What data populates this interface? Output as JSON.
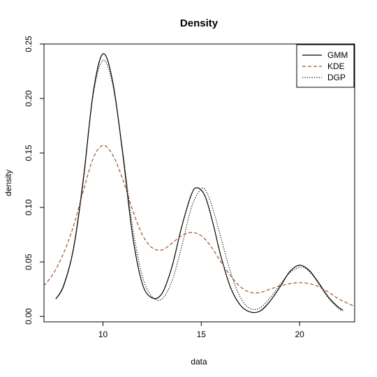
{
  "chart_data": {
    "type": "line",
    "title": "Density",
    "xlabel": "data",
    "ylabel": "density",
    "xlim": [
      7.0,
      22.8
    ],
    "ylim": [
      -0.005,
      0.25
    ],
    "x_ticks": [
      10,
      15,
      20
    ],
    "y_ticks": [
      0.0,
      0.05,
      0.1,
      0.15,
      0.2,
      0.25
    ],
    "x_tick_labels": [
      "10",
      "15",
      "20"
    ],
    "y_tick_labels": [
      "0.00",
      "0.05",
      "0.10",
      "0.15",
      "0.20",
      "0.25"
    ],
    "grid": false,
    "legend_position": "top-right",
    "series": [
      {
        "name": "GMM",
        "style": "solid",
        "color": "#000000",
        "points": [
          [
            7.6,
            0.016
          ],
          [
            8.0,
            0.028
          ],
          [
            8.5,
            0.062
          ],
          [
            9.0,
            0.125
          ],
          [
            9.5,
            0.205
          ],
          [
            10.0,
            0.241
          ],
          [
            10.5,
            0.215
          ],
          [
            11.0,
            0.15
          ],
          [
            11.5,
            0.075
          ],
          [
            12.0,
            0.03
          ],
          [
            12.5,
            0.017
          ],
          [
            13.0,
            0.021
          ],
          [
            13.5,
            0.045
          ],
          [
            14.0,
            0.082
          ],
          [
            14.5,
            0.112
          ],
          [
            14.8,
            0.118
          ],
          [
            15.2,
            0.11
          ],
          [
            15.6,
            0.085
          ],
          [
            16.0,
            0.055
          ],
          [
            16.5,
            0.026
          ],
          [
            17.0,
            0.01
          ],
          [
            17.5,
            0.004
          ],
          [
            18.0,
            0.005
          ],
          [
            18.5,
            0.014
          ],
          [
            19.0,
            0.027
          ],
          [
            19.5,
            0.041
          ],
          [
            20.0,
            0.047
          ],
          [
            20.5,
            0.042
          ],
          [
            21.0,
            0.03
          ],
          [
            21.5,
            0.017
          ],
          [
            22.0,
            0.008
          ],
          [
            22.2,
            0.006
          ]
        ]
      },
      {
        "name": "KDE",
        "style": "dashed",
        "color": "#a0522d",
        "points": [
          [
            7.0,
            0.028
          ],
          [
            7.5,
            0.04
          ],
          [
            8.0,
            0.058
          ],
          [
            8.5,
            0.083
          ],
          [
            9.0,
            0.115
          ],
          [
            9.5,
            0.145
          ],
          [
            10.0,
            0.157
          ],
          [
            10.5,
            0.148
          ],
          [
            11.0,
            0.126
          ],
          [
            11.5,
            0.098
          ],
          [
            12.0,
            0.075
          ],
          [
            12.5,
            0.063
          ],
          [
            13.0,
            0.061
          ],
          [
            13.5,
            0.067
          ],
          [
            14.0,
            0.074
          ],
          [
            14.5,
            0.077
          ],
          [
            15.0,
            0.074
          ],
          [
            15.5,
            0.064
          ],
          [
            16.0,
            0.05
          ],
          [
            16.5,
            0.037
          ],
          [
            17.0,
            0.027
          ],
          [
            17.5,
            0.022
          ],
          [
            18.0,
            0.022
          ],
          [
            18.5,
            0.025
          ],
          [
            19.0,
            0.028
          ],
          [
            19.5,
            0.03
          ],
          [
            20.0,
            0.031
          ],
          [
            20.5,
            0.03
          ],
          [
            21.0,
            0.027
          ],
          [
            21.5,
            0.022
          ],
          [
            22.0,
            0.016
          ],
          [
            22.8,
            0.009
          ]
        ]
      },
      {
        "name": "DGP",
        "style": "dotted",
        "color": "#000000",
        "points": [
          [
            7.6,
            0.016
          ],
          [
            8.0,
            0.029
          ],
          [
            8.5,
            0.063
          ],
          [
            9.0,
            0.127
          ],
          [
            9.5,
            0.203
          ],
          [
            10.0,
            0.235
          ],
          [
            10.5,
            0.212
          ],
          [
            11.0,
            0.152
          ],
          [
            11.5,
            0.083
          ],
          [
            12.0,
            0.037
          ],
          [
            12.5,
            0.018
          ],
          [
            13.0,
            0.016
          ],
          [
            13.5,
            0.032
          ],
          [
            14.0,
            0.064
          ],
          [
            14.5,
            0.1
          ],
          [
            15.0,
            0.117
          ],
          [
            15.3,
            0.113
          ],
          [
            15.7,
            0.092
          ],
          [
            16.0,
            0.072
          ],
          [
            16.5,
            0.04
          ],
          [
            17.0,
            0.017
          ],
          [
            17.5,
            0.007
          ],
          [
            18.0,
            0.008
          ],
          [
            18.5,
            0.017
          ],
          [
            19.0,
            0.029
          ],
          [
            19.5,
            0.04
          ],
          [
            20.0,
            0.045
          ],
          [
            20.3,
            0.044
          ],
          [
            20.7,
            0.037
          ],
          [
            21.0,
            0.029
          ],
          [
            21.5,
            0.016
          ],
          [
            22.0,
            0.007
          ],
          [
            22.2,
            0.005
          ]
        ]
      }
    ]
  }
}
